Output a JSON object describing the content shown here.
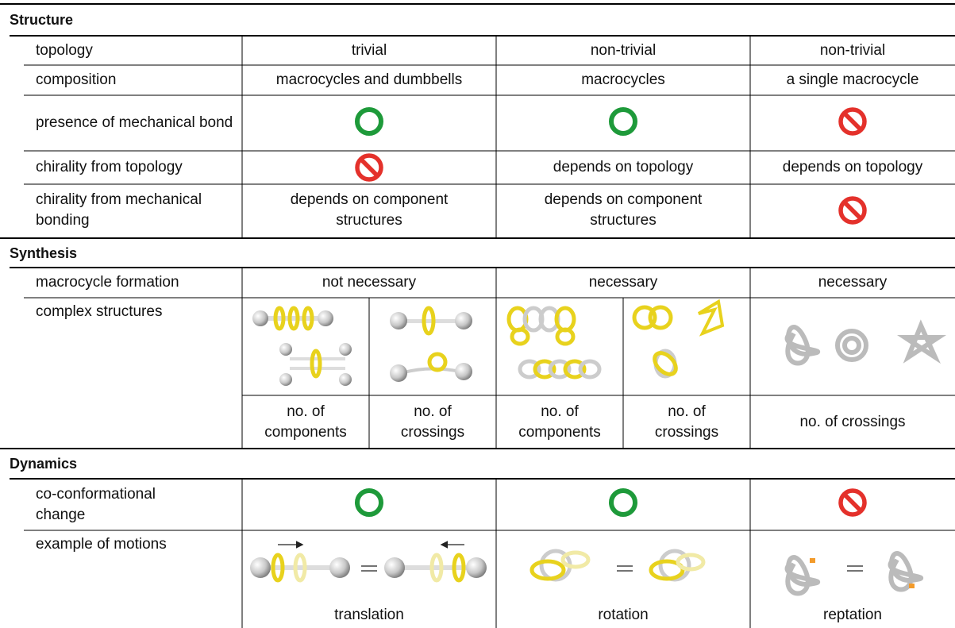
{
  "sections": [
    {
      "title": "Structure",
      "rows": [
        {
          "label": "topology",
          "rotaxanes": "trivial",
          "catenanes": "non-trivial",
          "knots": "non-trivial"
        },
        {
          "label": "composition",
          "rotaxanes": "macrocycles and dumbbells",
          "catenanes": "macrocycles",
          "knots": "a single macrocycle"
        },
        {
          "label": "presence of mechanical bond"
        },
        {
          "label": "chirality from topology",
          "catenanes": "depends on topology",
          "knots": "depends on topology"
        },
        {
          "label": "chirality from mechanical bonding",
          "rotaxanes": "depends on component structures",
          "catenanes": "depends on component structures"
        }
      ]
    },
    {
      "title": "Synthesis",
      "rows": [
        {
          "label": "macrocycle formation",
          "rotaxanes": "not necessary",
          "catenanes": "necessary",
          "knots": "necessary"
        },
        {
          "label": "complex structures",
          "rotaxanes": [
            "no. of components",
            "no. of crossings"
          ],
          "catenanes": [
            "no. of components",
            "no. of crossings"
          ],
          "knots": "no. of crossings"
        }
      ]
    },
    {
      "title": "Dynamics",
      "rows": [
        {
          "label": "co-conformational change"
        },
        {
          "label": "example of motions",
          "rotaxanes": "translation",
          "catenanes": "rotation",
          "knots": "reptation"
        }
      ]
    }
  ]
}
